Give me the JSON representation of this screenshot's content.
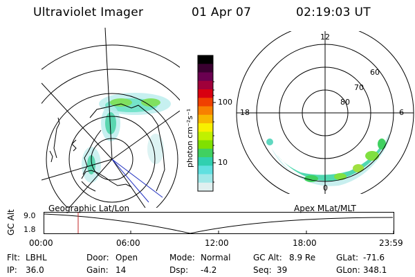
{
  "header": {
    "instrument": "Ultraviolet Imager",
    "date": "01 Apr 07",
    "time": "02:19:03 UT"
  },
  "colorbar": {
    "unit_label": "photon cm⁻²s⁻¹",
    "ticks": [
      "100",
      "10"
    ],
    "colors": [
      "#000000",
      "#3a0030",
      "#6a0050",
      "#a0003a",
      "#d80010",
      "#f04000",
      "#f88000",
      "#f8b800",
      "#f8f000",
      "#c0f000",
      "#80e000",
      "#40d060",
      "#30d0b0",
      "#60e0e0",
      "#a0e8e8",
      "#e0f0f0"
    ]
  },
  "polar_plot": {
    "mlt_labels": {
      "top": "12",
      "left": "18",
      "right": "6",
      "bottom": "0"
    },
    "lat_labels": [
      "60",
      "70",
      "80"
    ]
  },
  "altitude_strip": {
    "axis_label": "GC Alt",
    "ymax": "9.0",
    "ymin": "1.8",
    "left_title": "Geographic Lat/Lon",
    "right_title": "Apex MLat/MLT",
    "time_ticks": [
      "00:00",
      "06:00",
      "12:00",
      "18:00",
      "23:59"
    ],
    "current_time_fraction": 0.097
  },
  "info": {
    "row1": [
      {
        "key": "Flt:",
        "value": "LBHL"
      },
      {
        "key": "Door:",
        "value": "Open"
      },
      {
        "key": "Mode:",
        "value": "Normal"
      },
      {
        "key": "GC Alt:",
        "value": "8.9 Re"
      },
      {
        "key": "GLat:",
        "value": "-71.6"
      }
    ],
    "row2": [
      {
        "key": "IP:",
        "value": "36.0"
      },
      {
        "key": "Gain:",
        "value": "14"
      },
      {
        "key": "Dsp:",
        "value": "-4.2"
      },
      {
        "key": "Seq:",
        "value": "39"
      },
      {
        "key": "GLon:",
        "value": "348.1"
      }
    ]
  }
}
